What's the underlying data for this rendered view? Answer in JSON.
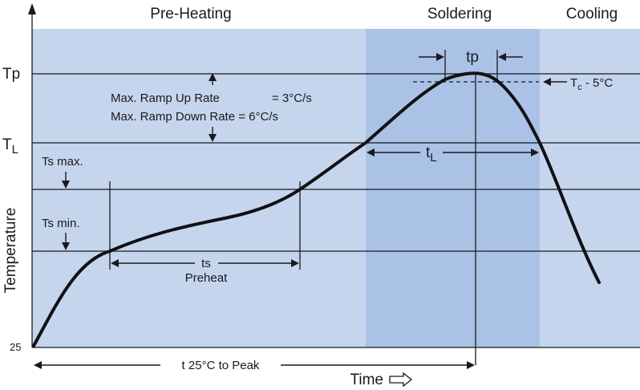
{
  "zones": {
    "preheat_label": "Pre-Heating",
    "soldering_label": "Soldering",
    "cooling_label": "Cooling"
  },
  "axes": {
    "y_label": "Temperature",
    "x_label": "Time",
    "origin_label": "25"
  },
  "levels": {
    "tp": "Tp",
    "tl_main": "T",
    "tl_sub": "L",
    "ts_max": "Ts max.",
    "ts_min": "Ts min."
  },
  "annotations": {
    "ramp_up": "Max. Ramp Up Rate",
    "ramp_up_value": "= 3°C/s",
    "ramp_down": "Max. Ramp Down Rate = 6°C/s",
    "tp_time": "tp",
    "tc_main": "T",
    "tc_sub": "c",
    "tc_rest": " - 5°C",
    "tl_time_main": "t",
    "tl_time_sub": "L",
    "ts_time": "ts",
    "ts_desc": "Preheat",
    "total_time": "t 25°C to Peak"
  },
  "colors": {
    "background": "#c5d5ee",
    "soldering_zone": "#a9c2e6",
    "soldering_core": "#9cb8e3",
    "curve": "#111111"
  }
}
